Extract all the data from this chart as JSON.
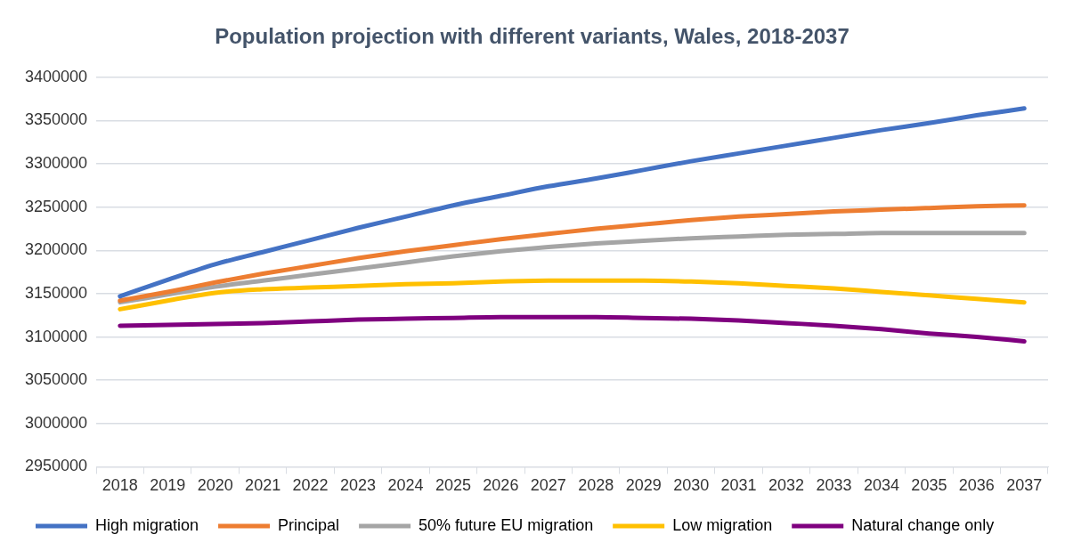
{
  "chart_data": {
    "type": "line",
    "title": "Population projection with different variants, Wales, 2018-2037",
    "categories": [
      "2018",
      "2019",
      "2020",
      "2021",
      "2022",
      "2023",
      "2024",
      "2025",
      "2026",
      "2027",
      "2028",
      "2029",
      "2030",
      "2031",
      "2032",
      "2033",
      "2034",
      "2035",
      "2036",
      "2037"
    ],
    "series": [
      {
        "name": "High migration",
        "color": "#4472c4",
        "values": [
          3147000,
          3166000,
          3184000,
          3198000,
          3212000,
          3226000,
          3239000,
          3252000,
          3263000,
          3274000,
          3283000,
          3293000,
          3303000,
          3312000,
          3321000,
          3330000,
          3339000,
          3347000,
          3356000,
          3364000
        ]
      },
      {
        "name": "Principal",
        "color": "#ed7d31",
        "values": [
          3142000,
          3152000,
          3163000,
          3173000,
          3182000,
          3191000,
          3199000,
          3206000,
          3213000,
          3219000,
          3225000,
          3230000,
          3235000,
          3239000,
          3242000,
          3245000,
          3247000,
          3249000,
          3251000,
          3252000
        ]
      },
      {
        "name": "50% future EU migration",
        "color": "#a5a5a5",
        "values": [
          3140000,
          3149000,
          3158000,
          3165000,
          3172000,
          3179000,
          3186000,
          3193000,
          3199000,
          3204000,
          3208000,
          3211000,
          3214000,
          3216000,
          3218000,
          3219000,
          3220000,
          3220000,
          3220000,
          3220000
        ]
      },
      {
        "name": "Low migration",
        "color": "#ffc000",
        "values": [
          3132000,
          3142000,
          3151000,
          3155000,
          3157000,
          3159000,
          3161000,
          3162000,
          3164000,
          3165000,
          3165000,
          3165000,
          3164000,
          3162000,
          3159000,
          3156000,
          3152000,
          3148000,
          3144000,
          3140000
        ]
      },
      {
        "name": "Natural change only",
        "color": "#7f007f",
        "values": [
          3113000,
          3114000,
          3115000,
          3116000,
          3118000,
          3120000,
          3121000,
          3122000,
          3123000,
          3123000,
          3123000,
          3122000,
          3121000,
          3119000,
          3116000,
          3113000,
          3109000,
          3104000,
          3100000,
          3095000
        ]
      }
    ],
    "ylim": [
      2950000,
      3400000
    ],
    "yticks": [
      2950000,
      3000000,
      3050000,
      3100000,
      3150000,
      3200000,
      3250000,
      3300000,
      3350000,
      3400000
    ],
    "grid": "y",
    "legend": "bottom",
    "marker": "none",
    "line_style": "solid"
  }
}
